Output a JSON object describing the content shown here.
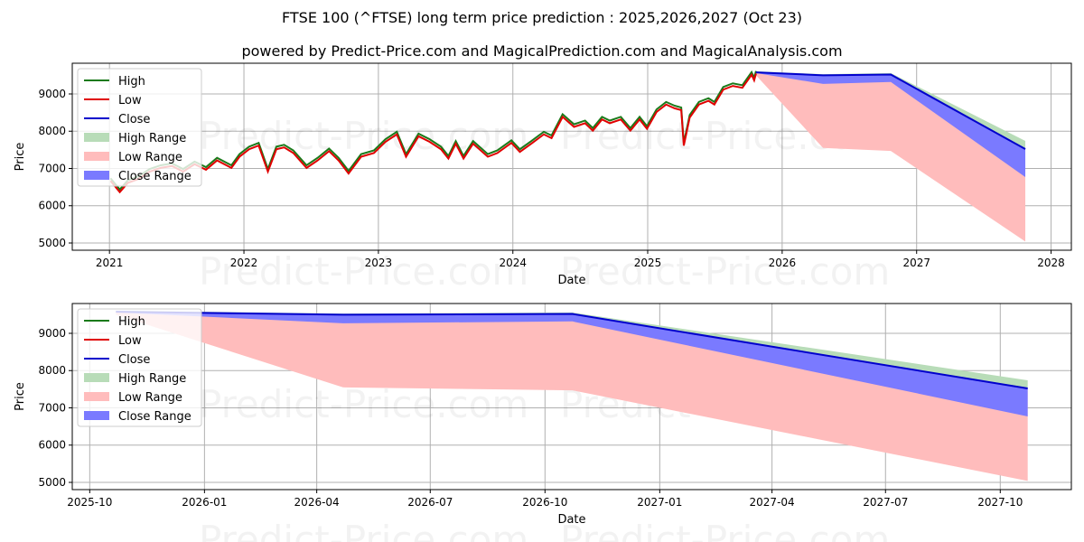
{
  "title": "FTSE 100 (^FTSE) long term price prediction : 2025,2026,2027 (Oct 23)",
  "subtitle": "powered by Predict-Price.com and MagicalPrediction.com and MagicalAnalysis.com",
  "watermark": "Predict-Price.com",
  "colors": {
    "high": "#1a7a1a",
    "low": "#e00000",
    "close": "#0000cc",
    "high_range": "#b8dcb8",
    "low_range": "#ffbcbc",
    "close_range": "#7a7aff"
  },
  "legend": [
    "High",
    "Low",
    "Close",
    "High Range",
    "Low Range",
    "Close Range"
  ],
  "chart_data": [
    {
      "type": "line",
      "xlabel": "Date",
      "ylabel": "Price",
      "ylim": [
        4806,
        9824
      ],
      "xlim": [
        "2020-09-22",
        "2028-02-25"
      ],
      "yticks": [
        5000,
        6000,
        7000,
        8000,
        9000
      ],
      "xticks": [
        "2021",
        "2022",
        "2023",
        "2024",
        "2025",
        "2026",
        "2027",
        "2028"
      ],
      "history": [
        [
          "2021-01-04",
          6700
        ],
        [
          "2021-01-29",
          6400
        ],
        [
          "2021-02-20",
          6650
        ],
        [
          "2021-03-20",
          6750
        ],
        [
          "2021-04-20",
          6950
        ],
        [
          "2021-05-20",
          7050
        ],
        [
          "2021-06-20",
          7100
        ],
        [
          "2021-07-20",
          6950
        ],
        [
          "2021-08-20",
          7150
        ],
        [
          "2021-09-20",
          7000
        ],
        [
          "2021-10-20",
          7250
        ],
        [
          "2021-11-28",
          7050
        ],
        [
          "2021-12-20",
          7350
        ],
        [
          "2022-01-15",
          7550
        ],
        [
          "2022-02-10",
          7650
        ],
        [
          "2022-03-07",
          6950
        ],
        [
          "2022-03-30",
          7550
        ],
        [
          "2022-04-20",
          7600
        ],
        [
          "2022-05-15",
          7450
        ],
        [
          "2022-06-20",
          7050
        ],
        [
          "2022-07-20",
          7250
        ],
        [
          "2022-08-20",
          7500
        ],
        [
          "2022-09-15",
          7250
        ],
        [
          "2022-10-12",
          6900
        ],
        [
          "2022-11-15",
          7350
        ],
        [
          "2022-12-20",
          7450
        ],
        [
          "2023-01-20",
          7750
        ],
        [
          "2023-02-20",
          7950
        ],
        [
          "2023-03-17",
          7350
        ],
        [
          "2023-04-20",
          7900
        ],
        [
          "2023-05-20",
          7750
        ],
        [
          "2023-06-20",
          7550
        ],
        [
          "2023-07-10",
          7300
        ],
        [
          "2023-07-30",
          7700
        ],
        [
          "2023-08-20",
          7300
        ],
        [
          "2023-09-15",
          7700
        ],
        [
          "2023-10-25",
          7350
        ],
        [
          "2023-11-20",
          7450
        ],
        [
          "2023-12-28",
          7720
        ],
        [
          "2024-01-20",
          7480
        ],
        [
          "2024-02-20",
          7700
        ],
        [
          "2024-03-25",
          7950
        ],
        [
          "2024-04-15",
          7850
        ],
        [
          "2024-05-15",
          8420
        ],
        [
          "2024-06-15",
          8150
        ],
        [
          "2024-07-15",
          8250
        ],
        [
          "2024-08-05",
          8050
        ],
        [
          "2024-08-30",
          8350
        ],
        [
          "2024-09-20",
          8250
        ],
        [
          "2024-10-20",
          8350
        ],
        [
          "2024-11-15",
          8050
        ],
        [
          "2024-12-10",
          8350
        ],
        [
          "2024-12-30",
          8100
        ],
        [
          "2025-01-25",
          8550
        ],
        [
          "2025-02-20",
          8750
        ],
        [
          "2025-03-15",
          8650
        ],
        [
          "2025-04-02",
          8600
        ],
        [
          "2025-04-09",
          7650
        ],
        [
          "2025-04-25",
          8400
        ],
        [
          "2025-05-20",
          8750
        ],
        [
          "2025-06-15",
          8850
        ],
        [
          "2025-07-01",
          8750
        ],
        [
          "2025-07-25",
          9150
        ],
        [
          "2025-08-20",
          9250
        ],
        [
          "2025-09-15",
          9200
        ],
        [
          "2025-10-10",
          9550
        ],
        [
          "2025-10-17",
          9400
        ],
        [
          "2025-10-22",
          9580
        ]
      ],
      "forecast": [
        {
          "date": "2025-10-22",
          "close": 9580,
          "high": 9600,
          "high_hi": 9610,
          "low": 9560,
          "close_lo": 9560,
          "low_lo": 9500
        },
        {
          "date": "2026-04-22",
          "close": 9500,
          "high": 9510,
          "high_hi": 9530,
          "low": 7550,
          "close_lo": 9270,
          "low_lo": 7550
        },
        {
          "date": "2026-10-23",
          "close": 9520,
          "high": 9530,
          "high_hi": 9560,
          "low": 7470,
          "close_lo": 9320,
          "low_lo": 7470
        },
        {
          "date": "2027-10-23",
          "close": 7520,
          "high": 7740,
          "high_hi": 7740,
          "low": 5040,
          "close_lo": 6770,
          "low_lo": 5040
        }
      ]
    },
    {
      "type": "line",
      "xlabel": "Date",
      "ylabel": "Price",
      "ylim": [
        4806,
        9800
      ],
      "xlim": [
        "2025-09-17",
        "2027-11-27"
      ],
      "yticks": [
        5000,
        6000,
        7000,
        8000,
        9000
      ],
      "xticks": [
        "2025-10",
        "2026-01",
        "2026-04",
        "2026-07",
        "2026-10",
        "2027-01",
        "2027-04",
        "2027-07",
        "2027-10"
      ]
    }
  ]
}
